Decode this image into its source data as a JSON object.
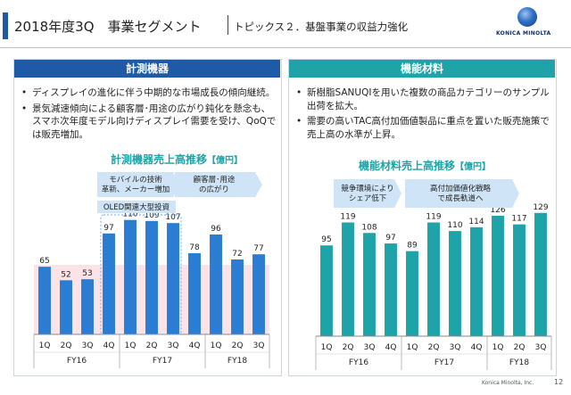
{
  "header": {
    "title": "2018年度3Q　事業セグメント",
    "subtitle": "トピックス２．基盤事業の収益力強化",
    "logo_text": "KONICA MINOLTA"
  },
  "left": {
    "heading": "計測機器",
    "bullets": [
      "ディスプレイの進化に伴う中期的な市場成長の傾向継続。",
      "景気減速傾向による顧客層･用途の広がり鈍化を懸念も、スマホ次年度モデル向けディスプレイ需要を受け、QoQでは販売増加。"
    ],
    "chart_title": "計測機器売上高推移",
    "chart_unit": "【億円】",
    "annotations": {
      "arrow1": "モバイルの技術革新、メーカー増加",
      "arrow2": "顧客層･用途の広がり",
      "box": "OLED関連大型投資"
    }
  },
  "right": {
    "heading": "機能材料",
    "bullets": [
      "新樹脂SANUQIを用いた複数の商品カテゴリーのサンプル出荷を拡大。",
      "需要の高いTAC高付加価値製品に重点を置いた販売施策で売上高の水準が上昇。"
    ],
    "chart_title": "機能材料売上高推移",
    "chart_unit": "【億円】",
    "annotations": {
      "arrow1": "競争環境によりシェア低下",
      "arrow2": "高付加価値化戦略で成長軌道へ"
    }
  },
  "chart_data": [
    {
      "type": "bar",
      "title": "計測機器売上高推移【億円】",
      "categories": [
        "1Q",
        "2Q",
        "3Q",
        "4Q",
        "1Q",
        "2Q",
        "3Q",
        "4Q",
        "1Q",
        "2Q",
        "3Q"
      ],
      "groups": [
        "FY16",
        "FY17",
        "FY18"
      ],
      "values": [
        65,
        52,
        53,
        97,
        110,
        109,
        107,
        78,
        96,
        72,
        77
      ],
      "ylim": [
        0,
        120
      ],
      "colors": {
        "bar": "#2b7cd3",
        "shade": "#fbe3e8"
      }
    },
    {
      "type": "bar",
      "title": "機能材料売上高推移【億円】",
      "categories": [
        "1Q",
        "2Q",
        "3Q",
        "4Q",
        "1Q",
        "2Q",
        "3Q",
        "4Q",
        "1Q",
        "2Q",
        "3Q"
      ],
      "groups": [
        "FY16",
        "FY17",
        "FY18"
      ],
      "values": [
        95,
        119,
        108,
        97,
        89,
        119,
        110,
        114,
        126,
        117,
        129
      ],
      "ylim": [
        0,
        140
      ],
      "colors": {
        "bar": "#1ea4a8"
      }
    }
  ],
  "footer": {
    "company": "Konica Minolta, Inc.",
    "page": "12"
  },
  "colors": {
    "left_head": "#1e5aa8",
    "right_head": "#1ea4a8",
    "arrow": "#cfe5f7"
  }
}
